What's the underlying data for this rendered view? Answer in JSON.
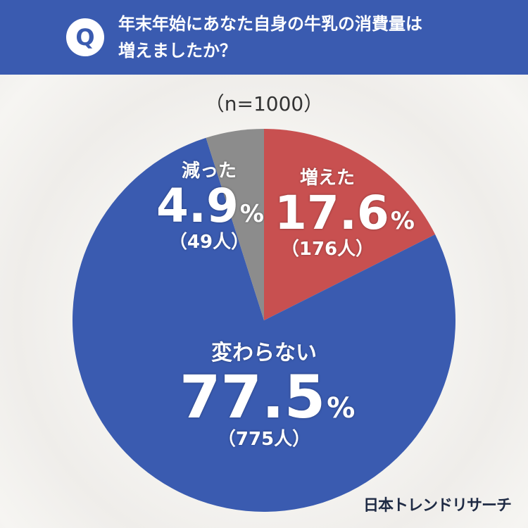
{
  "header": {
    "badge": "Q",
    "question_line1": "年末年始にあなた自身の牛乳の消費量は",
    "question_line2": "増えましたか？"
  },
  "sample": "（n=1000）",
  "chart_data": {
    "type": "pie",
    "title": "年末年始にあなた自身の牛乳の消費量は増えましたか？",
    "n": 1000,
    "start_angle_deg": 0,
    "direction": "clockwise",
    "slices": [
      {
        "label": "増えた",
        "percent": 17.6,
        "percent_text": "17.6",
        "count_text": "（176人）",
        "color": "#c85050"
      },
      {
        "label": "変わらない",
        "percent": 77.5,
        "percent_text": "77.5",
        "count_text": "（775人）",
        "color": "#3a5bb0"
      },
      {
        "label": "減った",
        "percent": 4.9,
        "percent_text": "4.9",
        "count_text": "（49人）",
        "color": "#8c8c8c"
      }
    ],
    "percent_sign": "%"
  },
  "brand": "日本トレンドリサーチ"
}
